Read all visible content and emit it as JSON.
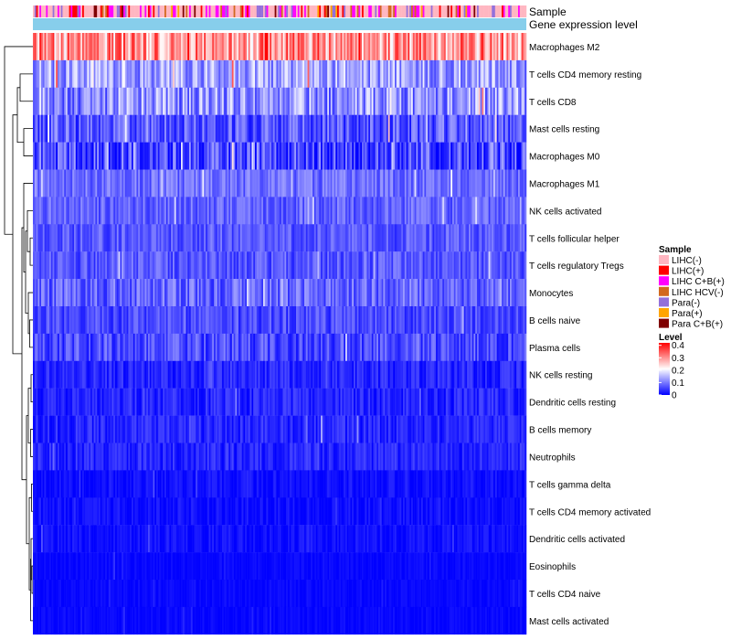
{
  "chart_data": {
    "type": "heatmap",
    "title": "",
    "annotation_tracks": [
      "Sample",
      "Gene expression level"
    ],
    "rows": [
      {
        "name": "Macrophages M2",
        "mean": 0.3,
        "spread": 0.1
      },
      {
        "name": "T cells CD4 memory resting",
        "mean": 0.13,
        "spread": 0.07
      },
      {
        "name": "T cells CD8",
        "mean": 0.12,
        "spread": 0.08
      },
      {
        "name": "Mast cells resting",
        "mean": 0.07,
        "spread": 0.06
      },
      {
        "name": "Macrophages M0",
        "mean": 0.06,
        "spread": 0.08
      },
      {
        "name": "Macrophages M1",
        "mean": 0.09,
        "spread": 0.04
      },
      {
        "name": "NK cells activated",
        "mean": 0.08,
        "spread": 0.04
      },
      {
        "name": "T cells follicular helper",
        "mean": 0.07,
        "spread": 0.04
      },
      {
        "name": "T cells regulatory  Tregs",
        "mean": 0.07,
        "spread": 0.04
      },
      {
        "name": "Monocytes",
        "mean": 0.08,
        "spread": 0.05
      },
      {
        "name": "B cells naive",
        "mean": 0.06,
        "spread": 0.04
      },
      {
        "name": "Plasma cells",
        "mean": 0.06,
        "spread": 0.05
      },
      {
        "name": "NK cells resting",
        "mean": 0.03,
        "spread": 0.03
      },
      {
        "name": "Dendritic cells resting",
        "mean": 0.03,
        "spread": 0.03
      },
      {
        "name": "B cells memory",
        "mean": 0.03,
        "spread": 0.03
      },
      {
        "name": "Neutrophils",
        "mean": 0.03,
        "spread": 0.03
      },
      {
        "name": "T cells gamma delta",
        "mean": 0.01,
        "spread": 0.02
      },
      {
        "name": "T cells CD4 memory activated",
        "mean": 0.01,
        "spread": 0.02
      },
      {
        "name": "Dendritic cells activated",
        "mean": 0.01,
        "spread": 0.02
      },
      {
        "name": "Eosinophils",
        "mean": 0.005,
        "spread": 0.01
      },
      {
        "name": "T cells CD4 naive",
        "mean": 0.005,
        "spread": 0.01
      },
      {
        "name": "Mast cells activated",
        "mean": 0.005,
        "spread": 0.01
      }
    ],
    "n_samples": 300,
    "sample_groups": [
      {
        "label": "LIHC(-)",
        "color": "#ffb6c1"
      },
      {
        "label": "LIHC(+)",
        "color": "#ff0000"
      },
      {
        "label": "LIHC C+B(+)",
        "color": "#ff00ff"
      },
      {
        "label": "LIHC HCV(-)",
        "color": "#d2691e"
      },
      {
        "label": "Para(-)",
        "color": "#9370db"
      },
      {
        "label": "Para(+)",
        "color": "#ffa500"
      },
      {
        "label": "Para C+B(+)",
        "color": "#800000"
      }
    ],
    "sample_group_weights": [
      0.55,
      0.08,
      0.16,
      0.07,
      0.08,
      0.03,
      0.03
    ],
    "gene_expression_color": "#87ceeb",
    "level_legend": {
      "title": "Level",
      "ticks": [
        "0.4",
        "0.3",
        "0.2",
        "0.1",
        "0"
      ],
      "tick_values": [
        0.4,
        0.3,
        0.2,
        0.1,
        0
      ],
      "min": 0,
      "max": 0.42,
      "colors": [
        "#0000ff",
        "#ffffff",
        "#ff0000"
      ]
    },
    "legend": {
      "title": "Sample",
      "position": "right"
    }
  }
}
